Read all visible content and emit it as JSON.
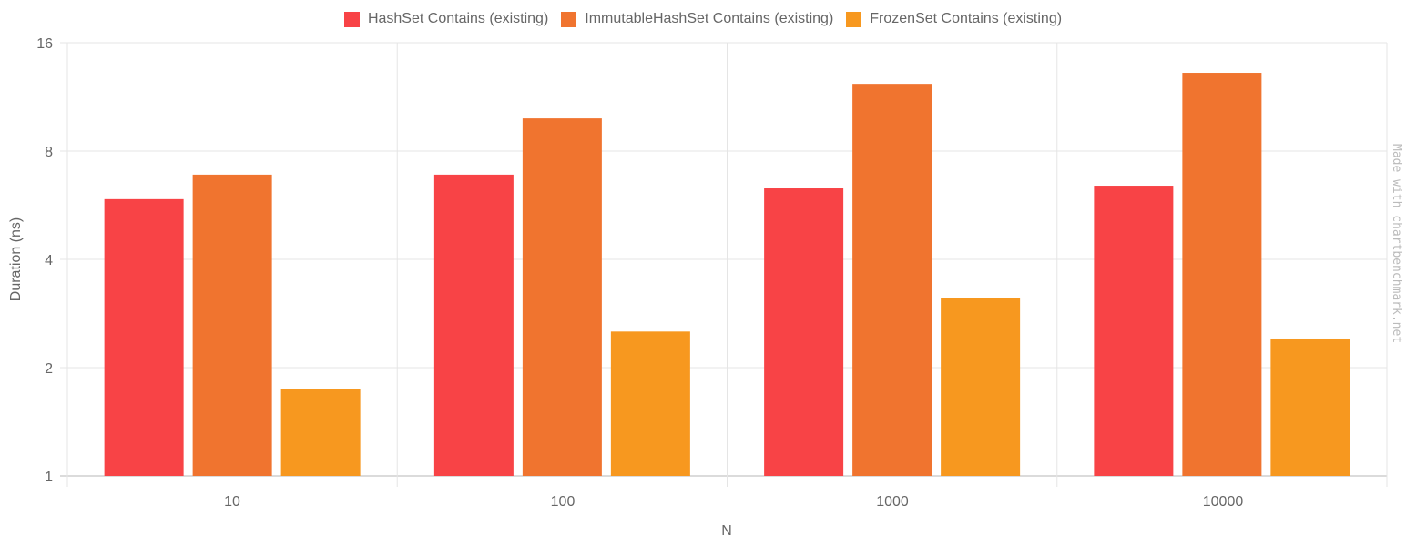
{
  "chart_data": {
    "type": "bar",
    "title": "",
    "xlabel": "N",
    "ylabel": "Duration (ns)",
    "yscale": "log2",
    "ylim": [
      1,
      16
    ],
    "yticks": [
      1,
      2,
      4,
      8,
      16
    ],
    "categories": [
      "10",
      "100",
      "1000",
      "10000"
    ],
    "grid": true,
    "legend_position": "top",
    "series": [
      {
        "name": "HashSet Contains (existing)",
        "color": "#f84346",
        "values": [
          5.88,
          6.88,
          6.3,
          6.41
        ]
      },
      {
        "name": "ImmutableHashSet Contains (existing)",
        "color": "#f0742f",
        "values": [
          6.88,
          9.86,
          12.3,
          13.2
        ]
      },
      {
        "name": "FrozenSet Contains (existing)",
        "color": "#f7981f",
        "values": [
          1.74,
          2.52,
          3.13,
          2.41
        ]
      }
    ]
  },
  "legend": [
    {
      "label": "HashSet Contains (existing)",
      "color": "#f84346"
    },
    {
      "label": "ImmutableHashSet Contains (existing)",
      "color": "#f0742f"
    },
    {
      "label": "FrozenSet Contains (existing)",
      "color": "#f7981f"
    }
  ],
  "axes": {
    "x_title": "N",
    "y_title": "Duration (ns)",
    "y_tick_labels": [
      "16",
      "8",
      "4",
      "2",
      "1"
    ],
    "x_tick_labels": [
      "10",
      "100",
      "1000",
      "10000"
    ]
  },
  "watermark": "Made with chartbenchmark.net"
}
